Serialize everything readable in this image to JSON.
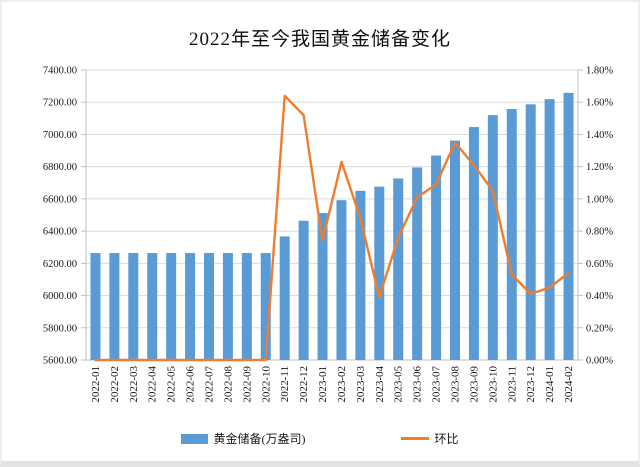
{
  "chart_data": {
    "type": "bar",
    "combo": "bar+line",
    "title": "2022年至今我国黄金储备变化",
    "categories": [
      "2022-01",
      "2022-02",
      "2022-03",
      "2022-04",
      "2022-05",
      "2022-06",
      "2022-07",
      "2022-08",
      "2022-09",
      "2022-10",
      "2022-11",
      "2022-12",
      "2023-01",
      "2023-02",
      "2023-03",
      "2023-04",
      "2023-05",
      "2023-06",
      "2023-07",
      "2023-08",
      "2023-09",
      "2023-10",
      "2023-11",
      "2023-12",
      "2024-01",
      "2024-02"
    ],
    "series": [
      {
        "name": "黄金储备(万盎司)",
        "type": "bar",
        "axis": "left",
        "values": [
          6264,
          6264,
          6264,
          6264,
          6264,
          6264,
          6264,
          6264,
          6264,
          6264,
          6367,
          6464,
          6512,
          6592,
          6650,
          6676,
          6727,
          6795,
          6869,
          6962,
          7046,
          7120,
          7158,
          7187,
          7219,
          7258
        ]
      },
      {
        "name": "环比",
        "type": "line",
        "axis": "right",
        "values": [
          0.0,
          0.0,
          0.0,
          0.0,
          0.0,
          0.0,
          0.0,
          0.0,
          0.0,
          0.0,
          1.64,
          1.52,
          0.74,
          1.23,
          0.88,
          0.39,
          0.76,
          1.01,
          1.09,
          1.35,
          1.21,
          1.05,
          0.53,
          0.41,
          0.45,
          0.54
        ]
      }
    ],
    "y_left_ticks": [
      "7400.00",
      "7200.00",
      "7000.00",
      "6800.00",
      "6600.00",
      "6400.00",
      "6200.00",
      "6000.00",
      "5800.00",
      "5600.00"
    ],
    "y_right_ticks": [
      "1.80%",
      "1.60%",
      "1.40%",
      "1.20%",
      "1.00%",
      "0.80%",
      "0.60%",
      "0.40%",
      "0.20%",
      "0.00%"
    ],
    "y_left_range": [
      5600,
      7400
    ],
    "y_right_range": [
      0.0,
      1.8
    ],
    "grid": true,
    "legend_position": "bottom",
    "colors": {
      "bar": "#5B9BD5",
      "line": "#ED7D31",
      "grid": "#DCDCDC",
      "axis": "#BFBFBF",
      "text": "#1A1A1A",
      "background": "#FFFFFF"
    }
  }
}
